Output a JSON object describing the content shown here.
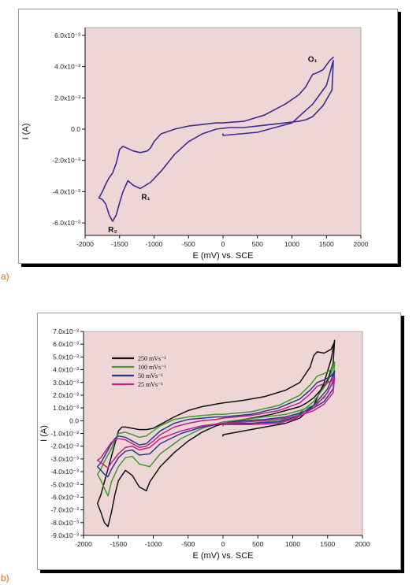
{
  "panels": [
    {
      "letter": "a)",
      "xlabel": "E (mV) vs. SCE",
      "ylabel": "I (A)"
    },
    {
      "letter": "b)",
      "xlabel": "E (mV) vs. SCE",
      "ylabel": "I (A)",
      "legend": [
        "250 mVs⁻¹",
        "100 mVs⁻¹",
        "50 mVs⁻¹",
        "25 mVs⁻¹"
      ]
    }
  ],
  "colors": {
    "plot_bg": "#eed6d6",
    "axis": "#111111",
    "panel_a_line": "#3a2d8f",
    "series": [
      "#111111",
      "#3d9a34",
      "#2f3590",
      "#c0208a"
    ]
  },
  "chart_data": [
    {
      "type": "line",
      "title": "",
      "xlabel": "E (mV) vs. SCE",
      "ylabel": "I (A)",
      "xlim": [
        -2000,
        2000
      ],
      "ylim": [
        -0.0068,
        0.0065
      ],
      "xticks": [
        -2000,
        -1500,
        -1000,
        -500,
        0,
        500,
        1000,
        1500,
        2000
      ],
      "yticks": [
        {
          "v": 0.006,
          "label": "6.0x10⁻³"
        },
        {
          "v": 0.004,
          "label": "4.0x10⁻³"
        },
        {
          "v": 0.002,
          "label": "2.0x10⁻³"
        },
        {
          "v": 0.0,
          "label": "0.0"
        },
        {
          "v": -0.002,
          "label": "-2.0x10⁻³"
        },
        {
          "v": -0.004,
          "label": "-4.0x10⁻³"
        },
        {
          "v": -0.006,
          "label": "-6.0x10⁻³"
        }
      ],
      "annotations": [
        {
          "text": "O₁",
          "x": 1300,
          "y": 0.0043
        },
        {
          "text": "R₁",
          "x": -1120,
          "y": -0.0045
        },
        {
          "text": "R₂",
          "x": -1600,
          "y": -0.0066
        }
      ],
      "series": [
        {
          "x": [
            0,
            0,
            500,
            1000,
            1300,
            1500,
            1600,
            1580,
            1450,
            1300,
            1200,
            1100,
            900,
            700,
            500,
            300,
            100,
            -100,
            -300,
            -500,
            -700,
            -900,
            -1050,
            -1200,
            -1300,
            -1380,
            -1450,
            -1500,
            -1550,
            -1600,
            -1650,
            -1700,
            -1750,
            -1800,
            -1750,
            -1700,
            -1650,
            -1600,
            -1550,
            -1500,
            -1450,
            -1400,
            -1300,
            -1200,
            -1100,
            -1050,
            -1000,
            -900,
            -700,
            -500,
            -300,
            -100,
            0,
            300,
            600,
            900,
            1100,
            1200,
            1260,
            1300,
            1360,
            1450,
            1550,
            1600
          ],
          "y": [
            -0.0003,
            -0.0004,
            -0.0002,
            0.0004,
            0.0016,
            0.0028,
            0.0044,
            0.0025,
            0.0015,
            0.0008,
            0.0006,
            0.0005,
            0.0004,
            0.0003,
            0.0002,
            0.0001,
            0.0001,
            0.0,
            -0.0003,
            -0.0008,
            -0.0016,
            -0.0027,
            -0.0034,
            -0.0038,
            -0.0036,
            -0.0033,
            -0.004,
            -0.0047,
            -0.0055,
            -0.0059,
            -0.0055,
            -0.0048,
            -0.0045,
            -0.0044,
            -0.004,
            -0.0035,
            -0.0031,
            -0.0028,
            -0.0022,
            -0.0013,
            -0.0011,
            -0.0012,
            -0.0014,
            -0.0015,
            -0.0014,
            -0.0012,
            -0.0008,
            -0.0003,
            0.0,
            0.0002,
            0.0003,
            0.0004,
            0.0004,
            0.0005,
            0.0009,
            0.0016,
            0.0022,
            0.0027,
            0.0032,
            0.0035,
            0.0036,
            0.0038,
            0.0044,
            0.0046
          ]
        }
      ]
    },
    {
      "type": "line",
      "title": "",
      "xlabel": "E (mV) vs. SCE",
      "ylabel": "I (A)",
      "xlim": [
        -2000,
        2000
      ],
      "ylim": [
        -0.009,
        0.007
      ],
      "xticks": [
        -2000,
        -1500,
        -1000,
        -500,
        0,
        500,
        1000,
        1500,
        2000
      ],
      "yticks": [
        {
          "v": 0.007,
          "label": "7.0x10⁻³"
        },
        {
          "v": 0.006,
          "label": "6.0x10⁻³"
        },
        {
          "v": 0.005,
          "label": "5.0x10⁻³"
        },
        {
          "v": 0.004,
          "label": "4.0x10⁻³"
        },
        {
          "v": 0.003,
          "label": "3.0x10⁻³"
        },
        {
          "v": 0.002,
          "label": "2.0x10⁻³"
        },
        {
          "v": 0.001,
          "label": "1.0x10⁻³"
        },
        {
          "v": 0.0,
          "label": "0.0"
        },
        {
          "v": -0.001,
          "label": "-1.0x10⁻³"
        },
        {
          "v": -0.002,
          "label": "-2.0x10⁻³"
        },
        {
          "v": -0.003,
          "label": "-3.0x10⁻³"
        },
        {
          "v": -0.004,
          "label": "-4.0x10⁻³"
        },
        {
          "v": -0.005,
          "label": "-5.0x10⁻³"
        },
        {
          "v": -0.006,
          "label": "-6.0x10⁻³"
        },
        {
          "v": -0.007,
          "label": "-7.0x10⁻³"
        },
        {
          "v": -0.008,
          "label": "-8.0x10⁻³"
        },
        {
          "v": -0.009,
          "label": "-9.0x10⁻³"
        }
      ],
      "legend_position": "top-left",
      "series": [
        {
          "name": "250 mVs⁻¹",
          "x": [
            0,
            0,
            300,
            600,
            900,
            1100,
            1300,
            1450,
            1550,
            1600,
            1580,
            1500,
            1400,
            1300,
            1200,
            1100,
            900,
            700,
            500,
            300,
            100,
            -100,
            -300,
            -500,
            -700,
            -900,
            -1050,
            -1100,
            -1200,
            -1300,
            -1400,
            -1500,
            -1550,
            -1600,
            -1650,
            -1700,
            -1750,
            -1800,
            -1750,
            -1700,
            -1650,
            -1600,
            -1550,
            -1500,
            -1450,
            -1400,
            -1300,
            -1200,
            -1100,
            -1000,
            -900,
            -700,
            -500,
            -300,
            -100,
            0,
            300,
            600,
            900,
            1100,
            1250,
            1300,
            1350,
            1450,
            1550,
            1600
          ],
          "y": [
            -0.0012,
            -0.0011,
            -0.0008,
            -0.0005,
            -0.0002,
            0.0002,
            0.0012,
            0.003,
            0.0048,
            0.0063,
            0.0045,
            0.0032,
            0.0024,
            0.0018,
            0.0014,
            0.0011,
            0.0008,
            0.0005,
            0.0003,
            0.0001,
            -0.0001,
            -0.0004,
            -0.0009,
            -0.0016,
            -0.0025,
            -0.0036,
            -0.0048,
            -0.0055,
            -0.0052,
            -0.0043,
            -0.0039,
            -0.0047,
            -0.0058,
            -0.0072,
            -0.0083,
            -0.008,
            -0.0072,
            -0.0065,
            -0.0058,
            -0.0048,
            -0.0038,
            -0.0028,
            -0.0018,
            -0.0008,
            -0.0005,
            -0.0005,
            -0.0006,
            -0.0007,
            -0.0007,
            -0.0006,
            -0.0003,
            0.0003,
            0.0008,
            0.0011,
            0.0013,
            0.0014,
            0.0016,
            0.0019,
            0.0024,
            0.003,
            0.0042,
            0.0051,
            0.0054,
            0.0053,
            0.0056,
            0.0062
          ]
        },
        {
          "name": "100 mVs⁻¹",
          "x": [
            0,
            0,
            400,
            800,
            1050,
            1300,
            1500,
            1600,
            1580,
            1450,
            1300,
            1100,
            900,
            600,
            300,
            0,
            -300,
            -600,
            -900,
            -1050,
            -1200,
            -1300,
            -1400,
            -1500,
            -1600,
            -1650,
            -1700,
            -1750,
            -1800,
            -1750,
            -1700,
            -1650,
            -1600,
            -1550,
            -1500,
            -1400,
            -1300,
            -1200,
            -1100,
            -1000,
            -900,
            -700,
            -500,
            -300,
            -100,
            0,
            400,
            800,
            1100,
            1250,
            1350,
            1450,
            1550,
            1600
          ],
          "y": [
            -0.0004,
            -0.0003,
            -0.0002,
            0.0,
            0.0004,
            0.0015,
            0.003,
            0.0045,
            0.003,
            0.0018,
            0.0012,
            0.0008,
            0.0005,
            0.0003,
            0.0001,
            -0.0001,
            -0.0006,
            -0.0014,
            -0.0026,
            -0.0036,
            -0.0034,
            -0.0028,
            -0.0029,
            -0.0036,
            -0.0048,
            -0.0059,
            -0.0053,
            -0.0047,
            -0.0042,
            -0.0038,
            -0.0032,
            -0.0027,
            -0.0022,
            -0.0015,
            -0.001,
            -0.0009,
            -0.0011,
            -0.0013,
            -0.0012,
            -0.0008,
            -0.0004,
            0.0001,
            0.0003,
            0.0004,
            0.0005,
            0.0005,
            0.0007,
            0.0012,
            0.002,
            0.0028,
            0.0035,
            0.0037,
            0.004,
            0.0046
          ]
        },
        {
          "name": "50 mVs⁻¹",
          "x": [
            0,
            0,
            400,
            800,
            1050,
            1300,
            1500,
            1600,
            1580,
            1450,
            1300,
            1100,
            900,
            600,
            300,
            0,
            -300,
            -600,
            -900,
            -1050,
            -1200,
            -1300,
            -1400,
            -1500,
            -1600,
            -1650,
            -1700,
            -1750,
            -1800,
            -1750,
            -1700,
            -1650,
            -1600,
            -1550,
            -1500,
            -1400,
            -1300,
            -1200,
            -1100,
            -1000,
            -900,
            -700,
            -500,
            -300,
            -100,
            0,
            400,
            800,
            1100,
            1250,
            1350,
            1450,
            1550,
            1600
          ],
          "y": [
            -0.0003,
            -0.0002,
            -0.0002,
            -0.0001,
            0.0003,
            0.0012,
            0.0025,
            0.0039,
            0.0025,
            0.0015,
            0.001,
            0.0006,
            0.0003,
            0.0001,
            0.0,
            -0.0002,
            -0.0005,
            -0.001,
            -0.0018,
            -0.0026,
            -0.0027,
            -0.0023,
            -0.0024,
            -0.0029,
            -0.0038,
            -0.0044,
            -0.0042,
            -0.0039,
            -0.0036,
            -0.0033,
            -0.0028,
            -0.0023,
            -0.0018,
            -0.0014,
            -0.0012,
            -0.0013,
            -0.0016,
            -0.0019,
            -0.0018,
            -0.0013,
            -0.0008,
            -0.0002,
            0.0001,
            0.0002,
            0.0003,
            0.0003,
            0.0005,
            0.001,
            0.0017,
            0.0024,
            0.003,
            0.0032,
            0.0035,
            0.0039
          ]
        },
        {
          "name": "25 mVs⁻¹",
          "x": [
            0,
            0,
            400,
            800,
            1050,
            1300,
            1500,
            1600,
            1580,
            1450,
            1300,
            1100,
            900,
            600,
            300,
            0,
            -300,
            -600,
            -900,
            -1050,
            -1200,
            -1300,
            -1400,
            -1500,
            -1600,
            -1650,
            -1700,
            -1750,
            -1800,
            -1750,
            -1700,
            -1650,
            -1600,
            -1550,
            -1500,
            -1400,
            -1300,
            -1200,
            -1100,
            -1000,
            -900,
            -700,
            -500,
            -300,
            -100,
            0,
            400,
            800,
            1100,
            1250,
            1350,
            1450,
            1550,
            1600
          ],
          "y": [
            -0.0004,
            -0.0003,
            -0.0003,
            -0.0002,
            0.0002,
            0.001,
            0.0022,
            0.0034,
            0.0022,
            0.0013,
            0.0008,
            0.0004,
            0.0002,
            0.0,
            -0.0001,
            -0.0002,
            -0.0004,
            -0.0008,
            -0.0014,
            -0.0021,
            -0.0023,
            -0.002,
            -0.0021,
            -0.0026,
            -0.0033,
            -0.0037,
            -0.0035,
            -0.0033,
            -0.0031,
            -0.0029,
            -0.0025,
            -0.0021,
            -0.0017,
            -0.0015,
            -0.0014,
            -0.0015,
            -0.0018,
            -0.0021,
            -0.002,
            -0.0016,
            -0.0011,
            -0.0005,
            -0.0002,
            0.0,
            0.0001,
            0.0002,
            0.0004,
            0.0008,
            0.0014,
            0.0021,
            0.0027,
            0.0029,
            0.0031,
            0.0034
          ]
        }
      ]
    }
  ]
}
